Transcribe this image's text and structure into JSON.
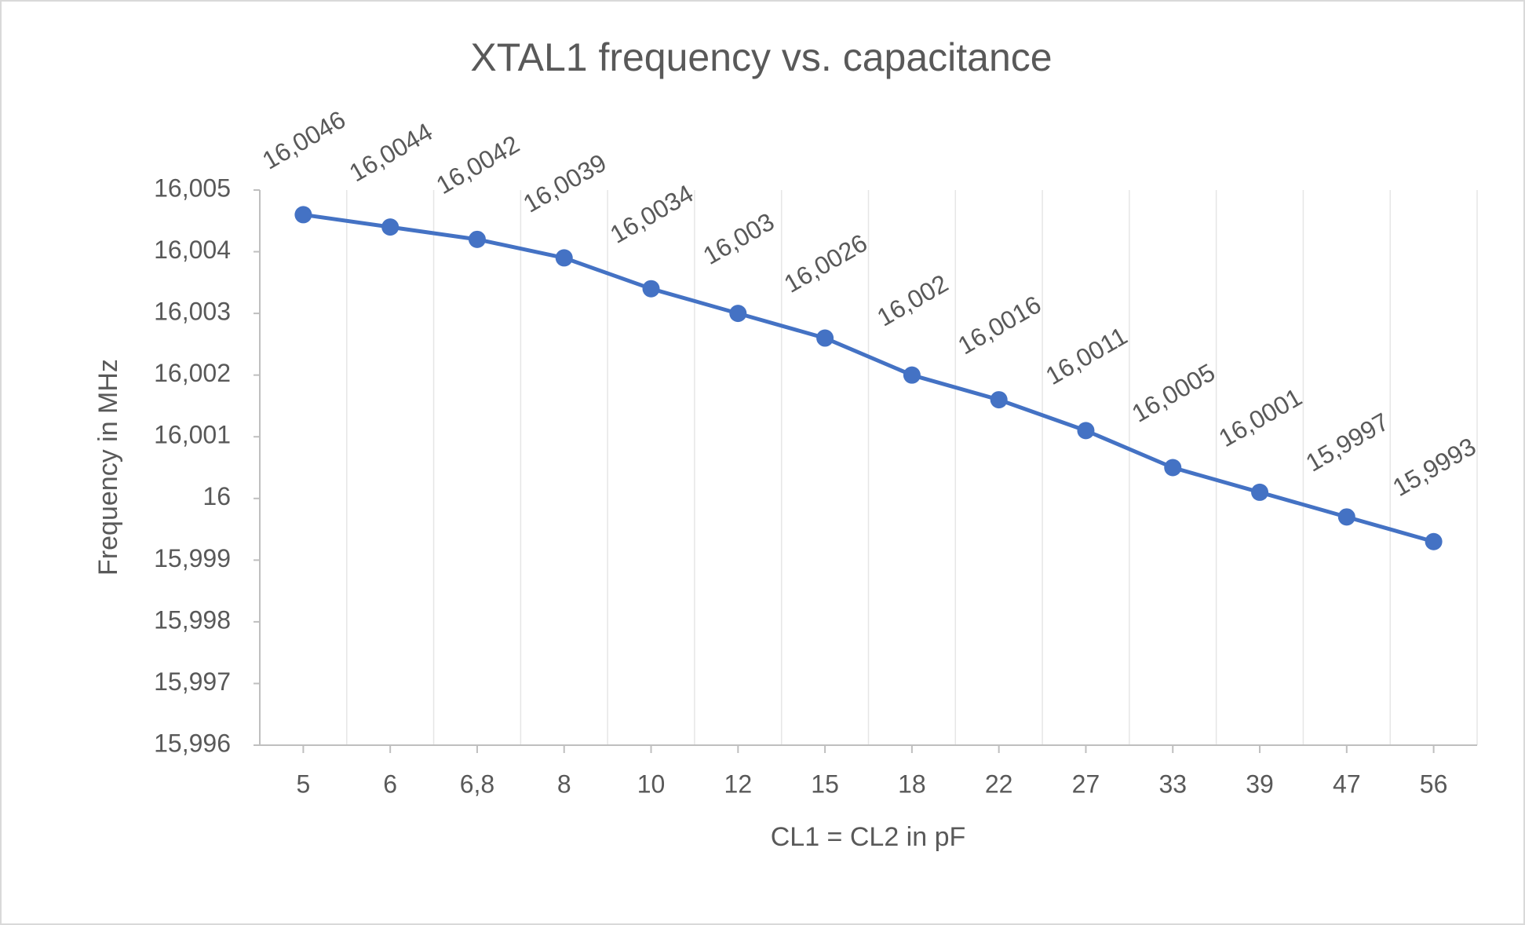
{
  "chart_data": {
    "type": "line",
    "title": "XTAL1 frequency vs. capacitance",
    "x_label": "CL1 = CL2 in pF",
    "y_label": "Frequency in MHz",
    "categories": [
      "5",
      "6",
      "6,8",
      "8",
      "10",
      "12",
      "15",
      "18",
      "22",
      "27",
      "33",
      "39",
      "47",
      "56"
    ],
    "series": [
      {
        "name": "Frequency",
        "color": "#4472c4",
        "values": [
          16.0046,
          16.0044,
          16.0042,
          16.0039,
          16.0034,
          16.003,
          16.0026,
          16.002,
          16.0016,
          16.0011,
          16.0005,
          16.0001,
          15.9997,
          15.9993
        ],
        "value_labels": [
          "16,0046",
          "16,0044",
          "16,0042",
          "16,0039",
          "16,0034",
          "16,003",
          "16,0026",
          "16,002",
          "16,0016",
          "16,0011",
          "16,0005",
          "16,0001",
          "15,9997",
          "15,9993"
        ]
      }
    ],
    "ylim": [
      15.996,
      16.005
    ],
    "yticks": [
      {
        "value": 15.996,
        "label": "15,996"
      },
      {
        "value": 15.997,
        "label": "15,997"
      },
      {
        "value": 15.998,
        "label": "15,998"
      },
      {
        "value": 15.999,
        "label": "15,999"
      },
      16,
      {
        "value": 16.001,
        "label": "16,001"
      },
      {
        "value": 16.002,
        "label": "16,002"
      },
      {
        "value": 16.003,
        "label": "16,003"
      },
      {
        "value": 16.004,
        "label": "16,004"
      },
      {
        "value": 16.005,
        "label": "16,005"
      }
    ],
    "grid": true
  }
}
